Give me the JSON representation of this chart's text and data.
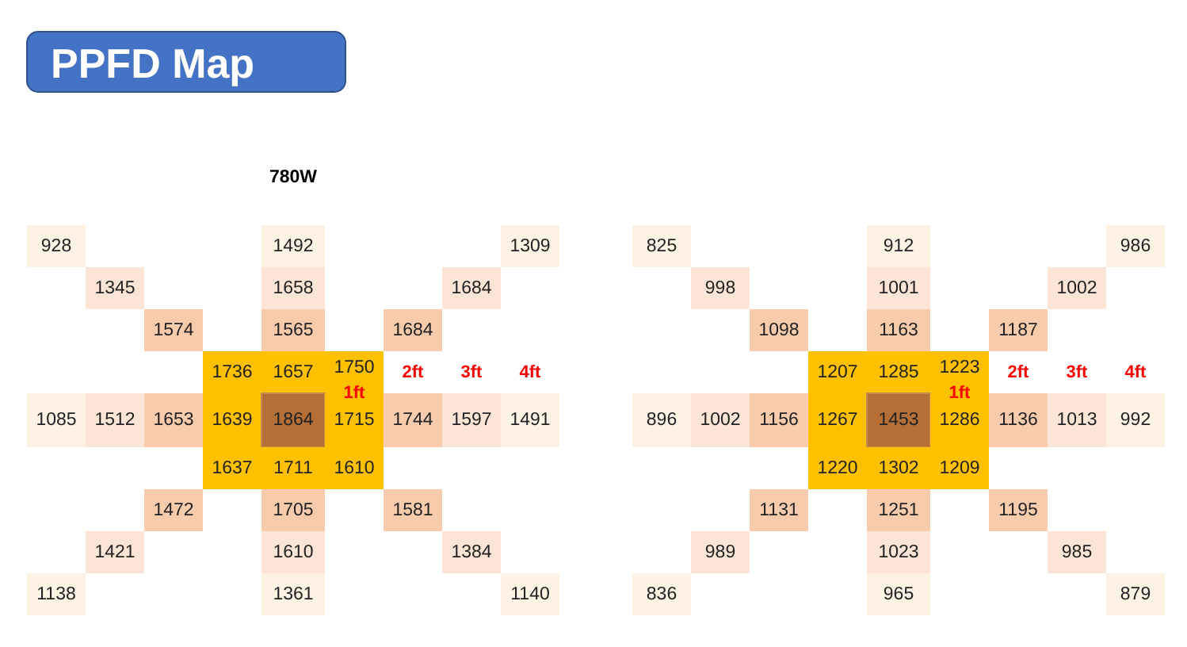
{
  "chart_data": [
    {
      "type": "other",
      "title": "PPFD Map",
      "subtitle": "780W",
      "data_labels": true,
      "categories": [
        null,
        null,
        null,
        null,
        null,
        null,
        null,
        null,
        null,
        null,
        null,
        null,
        null,
        null,
        null,
        null,
        null,
        null,
        null,
        null,
        null,
        null,
        null,
        null,
        null,
        null,
        null,
        null,
        null,
        null,
        null,
        null,
        null
      ],
      "values": [
        928,
        1492,
        1309,
        1345,
        1658,
        1684,
        1574,
        1565,
        1684,
        1736,
        1657,
        1750,
        1085,
        1512,
        1653,
        1639,
        1864,
        1715,
        1744,
        1597,
        1491,
        1637,
        1711,
        1610,
        1472,
        1705,
        1581,
        1421,
        1610,
        1384,
        1138,
        1361,
        1140
      ],
      "annotations": [
        "1ft",
        "2ft",
        "3ft",
        "4ft"
      ]
    },
    {
      "type": "other",
      "data_labels": true,
      "categories": [
        null,
        null,
        null,
        null,
        null,
        null,
        null,
        null,
        null,
        null,
        null,
        null,
        null,
        null,
        null,
        null,
        null,
        null,
        null,
        null,
        null,
        null,
        null,
        null,
        null,
        null,
        null,
        null,
        null,
        null,
        null,
        null,
        null
      ],
      "values": [
        825,
        912,
        986,
        998,
        1001,
        1002,
        1098,
        1163,
        1187,
        1207,
        1285,
        1223,
        896,
        1002,
        1156,
        1267,
        1453,
        1286,
        1136,
        1013,
        992,
        1220,
        1302,
        1209,
        1131,
        1251,
        1195,
        989,
        1023,
        985,
        836,
        965,
        879
      ],
      "annotations": [
        "1ft",
        "2ft",
        "3ft",
        "4ft"
      ]
    }
  ]
}
